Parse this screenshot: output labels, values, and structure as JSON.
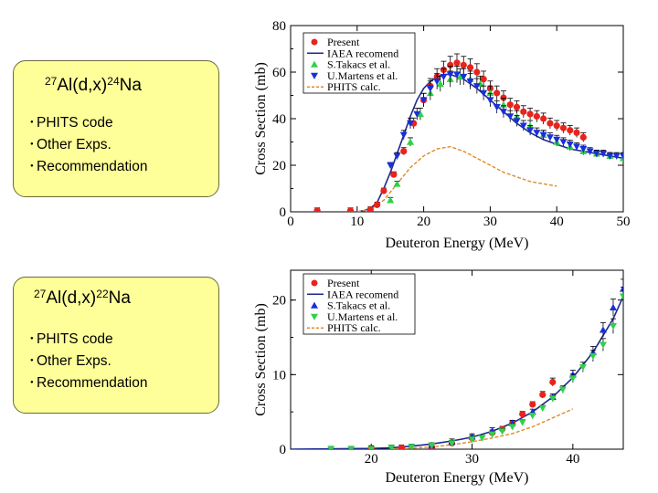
{
  "cards": [
    {
      "mass": "27",
      "target": "Al(d,x)",
      "product_mass": "24",
      "product": "Na",
      "items": [
        "PHITS code",
        "Other Exps.",
        "Recommendation"
      ]
    },
    {
      "mass": "27",
      "target": "Al(d,x)",
      "product_mass": "22",
      "product": "Na",
      "items": [
        "PHITS code",
        "Other Exps.",
        "Recommendation"
      ]
    }
  ],
  "colors": {
    "present": "#e8231c",
    "iaea": "#1d2b8e",
    "takacs": "#2fd04a",
    "martens": "#1a2fd8",
    "phits": "#e08a2a",
    "card_bg": "#ffff99"
  },
  "chart_data": [
    {
      "type": "scatter",
      "title": "27Al(d,x)24Na",
      "xlabel": "Deuteron Energy (MeV)",
      "ylabel": "Cross Section (mb)",
      "xlim": [
        0,
        50
      ],
      "ylim": [
        0,
        80
      ],
      "xticks": [
        0,
        10,
        20,
        30,
        40,
        50
      ],
      "yticks": [
        0,
        20,
        40,
        60,
        80
      ],
      "legend": {
        "position": "top-right",
        "entries": [
          "Present",
          "IAEA recomend",
          "S.Takacs et al.",
          "U.Martens et al.",
          "PHITS calc."
        ]
      },
      "series": [
        {
          "name": "Present",
          "kind": "marker",
          "marker": "circle",
          "color": "#e8231c",
          "x": [
            4,
            9,
            12,
            13,
            14,
            15.5,
            17,
            18.5,
            20,
            21,
            22,
            23,
            24,
            25,
            26,
            27,
            28,
            29,
            30,
            31,
            32,
            33,
            34,
            35,
            36,
            37,
            38,
            39,
            40,
            41,
            42,
            43,
            44
          ],
          "y": [
            0.5,
            0.5,
            1,
            3,
            9,
            16,
            26,
            38,
            48,
            54,
            58,
            61,
            63,
            64,
            63,
            62,
            60,
            57,
            53,
            51,
            49,
            46,
            45,
            43,
            42,
            41,
            40,
            38,
            37,
            36,
            35,
            34,
            32
          ]
        },
        {
          "name": "S.Takacs et al.",
          "kind": "marker",
          "marker": "triangle-up",
          "color": "#2fd04a",
          "x": [
            15,
            16,
            18,
            19.5,
            21,
            22.5,
            24,
            25.5,
            27,
            28.5,
            30,
            32,
            34,
            36,
            38,
            40,
            42,
            44,
            46,
            48,
            50
          ],
          "y": [
            5,
            12,
            30,
            42,
            51,
            55,
            57,
            58,
            57,
            55,
            51,
            46,
            41,
            37,
            33,
            30,
            28,
            26,
            25,
            24,
            23
          ]
        },
        {
          "name": "U.Martens et al.",
          "kind": "marker",
          "marker": "triangle-down",
          "color": "#1a2fd8",
          "x": [
            15,
            16,
            17,
            18,
            19,
            20,
            21,
            22,
            23,
            24,
            25,
            26,
            27,
            28,
            29,
            30,
            31,
            32,
            33,
            34,
            35,
            36,
            37,
            38,
            39,
            40,
            41,
            42,
            43,
            44,
            45,
            46,
            47,
            48,
            49,
            50
          ],
          "y": [
            20,
            24,
            33,
            38,
            42,
            48,
            53,
            56,
            58,
            59,
            59,
            58,
            56,
            54,
            51,
            48,
            45,
            43,
            41,
            39,
            37,
            35,
            34,
            33,
            32,
            31,
            30,
            29,
            28,
            27,
            26,
            25,
            25,
            24,
            24,
            24
          ]
        },
        {
          "name": "IAEA recomend",
          "kind": "line",
          "color": "#1d2b8e",
          "x": [
            10,
            11,
            12,
            13,
            14,
            15,
            16,
            17,
            18,
            19,
            20,
            21,
            22,
            23,
            24,
            25,
            26,
            27,
            28,
            30,
            32,
            34,
            36,
            38,
            40,
            42,
            44,
            46,
            48,
            50
          ],
          "y": [
            0,
            0.5,
            1.5,
            4,
            10,
            17,
            25,
            33,
            41,
            48,
            53,
            56,
            58,
            59,
            59,
            58,
            57,
            55,
            53,
            48,
            43,
            38,
            34,
            31,
            29,
            27,
            26,
            25,
            24,
            23
          ]
        },
        {
          "name": "PHITS calc.",
          "kind": "dashed-line",
          "color": "#e08a2a",
          "x": [
            10,
            12,
            14,
            16,
            18,
            20,
            22,
            24,
            26,
            28,
            30,
            32,
            34,
            36,
            38,
            40
          ],
          "y": [
            0,
            1,
            5,
            12,
            19,
            24,
            27,
            28,
            26,
            23,
            20,
            17,
            15,
            13,
            12,
            11
          ]
        }
      ]
    },
    {
      "type": "scatter",
      "title": "27Al(d,x)22Na",
      "xlabel": "Deuteron Energy (MeV)",
      "ylabel": "Cross Section (mb)",
      "xlim": [
        12,
        45
      ],
      "ylim": [
        0,
        24
      ],
      "xticks": [
        20,
        30,
        40
      ],
      "yticks": [
        0,
        10,
        20
      ],
      "legend": {
        "position": "top-left",
        "entries": [
          "Present",
          "IAEA recomend",
          "S.Takacs et al.",
          "U.Martens et al.",
          "PHITS calc."
        ]
      },
      "series": [
        {
          "name": "Present",
          "kind": "marker",
          "marker": "circle",
          "color": "#e8231c",
          "x": [
            20,
            23,
            26,
            28,
            30,
            32,
            33,
            34,
            35,
            36,
            37,
            38
          ],
          "y": [
            0.1,
            0.2,
            0.3,
            0.8,
            1.5,
            2.2,
            2.7,
            3.5,
            4.7,
            6,
            7.3,
            9
          ]
        },
        {
          "name": "S.Takacs et al.",
          "kind": "marker",
          "marker": "triangle-up",
          "color": "#1a2fd8",
          "x": [
            26,
            28,
            30,
            32,
            34,
            36,
            38,
            40,
            42,
            43,
            44,
            45
          ],
          "y": [
            0.5,
            1,
            1.7,
            2.5,
            3.5,
            5,
            7,
            10,
            13,
            16,
            19,
            21.5
          ]
        },
        {
          "name": "U.Martens et al.",
          "kind": "marker",
          "marker": "triangle-down",
          "color": "#2fd04a",
          "x": [
            16,
            18,
            20,
            22,
            24,
            26,
            28,
            30,
            31,
            32,
            33,
            34,
            35,
            36,
            37,
            38,
            39,
            40,
            41,
            42,
            43,
            44,
            45
          ],
          "y": [
            0,
            0,
            0,
            0.2,
            0.3,
            0.5,
            0.8,
            1.3,
            1.5,
            2,
            2.4,
            3,
            3.6,
            4.5,
            5.5,
            6.8,
            8,
            9.5,
            11,
            12.5,
            14,
            16.5,
            20.5
          ]
        },
        {
          "name": "IAEA recomend",
          "kind": "line",
          "color": "#1d2b8e",
          "x": [
            12,
            20,
            22,
            24,
            26,
            28,
            30,
            32,
            34,
            36,
            38,
            40,
            42,
            44,
            45
          ],
          "y": [
            0,
            0.1,
            0.2,
            0.4,
            0.7,
            1.1,
            1.6,
            2.4,
            3.5,
            5,
            7,
            9.6,
            13,
            17.5,
            20.5
          ]
        },
        {
          "name": "PHITS calc.",
          "kind": "dashed-line",
          "color": "#e08a2a",
          "x": [
            22,
            26,
            28,
            30,
            32,
            34,
            36,
            38,
            40
          ],
          "y": [
            0,
            0.3,
            0.6,
            1,
            1.5,
            2.1,
            3,
            4.2,
            5.4
          ]
        }
      ]
    }
  ]
}
